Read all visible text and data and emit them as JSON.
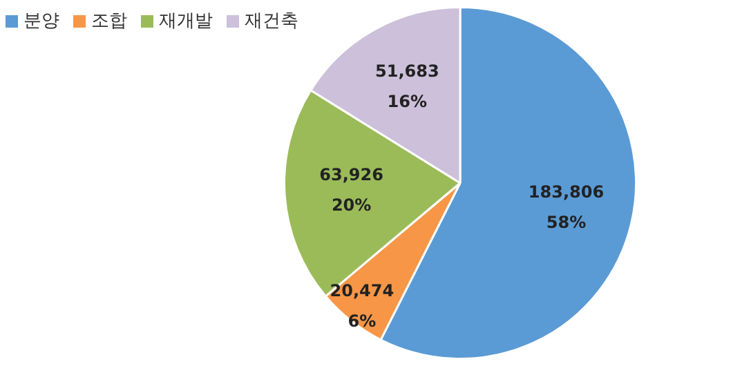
{
  "chart_data": {
    "type": "pie",
    "categories": [
      "분양",
      "조합",
      "재개발",
      "재건축"
    ],
    "values": [
      183806,
      20474,
      63926,
      51683
    ],
    "colors": [
      "#5b9bd5",
      "#f79646",
      "#9bbb59",
      "#ccc0da"
    ],
    "value_labels": [
      "183,806\n58%",
      "20,474\n6%",
      "63,926\n20%",
      "51,683\n16%"
    ],
    "legend": "top left"
  }
}
